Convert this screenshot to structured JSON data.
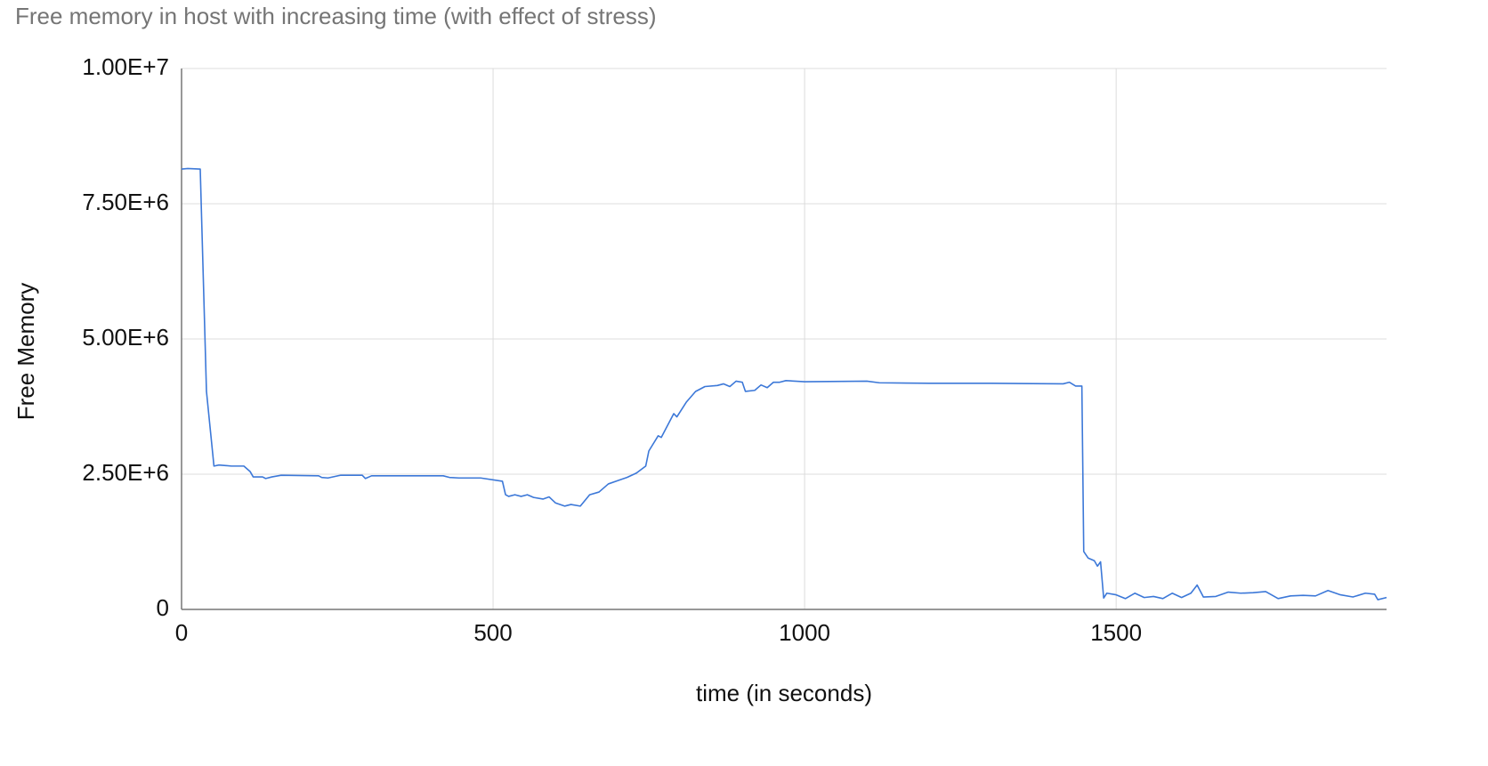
{
  "chart_data": {
    "type": "line",
    "title": "Free memory in host with increasing time (with effect of stress)",
    "x_label": "time (in seconds)",
    "y_label": "Free Memory",
    "xlim": [
      0,
      1934
    ],
    "ylim": [
      0,
      10000000
    ],
    "xticks": [
      0,
      500,
      1000,
      1500
    ],
    "yticks": [
      0,
      {
        "value": 2500000,
        "label": "2.50E+6"
      },
      {
        "value": 5000000,
        "label": "5.00E+6"
      },
      {
        "value": 7500000,
        "label": "7.50E+6"
      },
      {
        "value": 10000000,
        "label": "1.00E+7"
      }
    ],
    "grid": true,
    "series": [
      {
        "name": "Free Memory",
        "color": "#3c78d8",
        "x": [
          0,
          10,
          30,
          40,
          52,
          60,
          80,
          100,
          110,
          115,
          130,
          135,
          145,
          160,
          220,
          225,
          235,
          255,
          290,
          295,
          305,
          420,
          430,
          445,
          480,
          515,
          520,
          525,
          535,
          545,
          555,
          565,
          580,
          590,
          600,
          615,
          625,
          640,
          655,
          670,
          685,
          700,
          715,
          730,
          745,
          750,
          765,
          770,
          790,
          795,
          810,
          825,
          840,
          860,
          870,
          880,
          890,
          900,
          905,
          920,
          930,
          940,
          950,
          960,
          970,
          1000,
          1100,
          1120,
          1200,
          1300,
          1415,
          1425,
          1435,
          1445,
          1448,
          1455,
          1465,
          1470,
          1475,
          1480,
          1485,
          1500,
          1515,
          1530,
          1545,
          1560,
          1575,
          1590,
          1605,
          1620,
          1630,
          1640,
          1660,
          1680,
          1700,
          1720,
          1740,
          1760,
          1780,
          1800,
          1820,
          1840,
          1860,
          1880,
          1900,
          1915,
          1920,
          1934
        ],
        "values": [
          8140000,
          8150000,
          8140000,
          4030000,
          2650000,
          2670000,
          2650000,
          2650000,
          2550000,
          2450000,
          2450000,
          2420000,
          2450000,
          2480000,
          2470000,
          2440000,
          2430000,
          2480000,
          2480000,
          2420000,
          2470000,
          2470000,
          2440000,
          2430000,
          2430000,
          2370000,
          2120000,
          2090000,
          2120000,
          2090000,
          2120000,
          2070000,
          2040000,
          2080000,
          1970000,
          1910000,
          1940000,
          1910000,
          2120000,
          2170000,
          2320000,
          2380000,
          2440000,
          2520000,
          2650000,
          2930000,
          3210000,
          3180000,
          3620000,
          3560000,
          3830000,
          4030000,
          4120000,
          4140000,
          4170000,
          4120000,
          4220000,
          4200000,
          4030000,
          4050000,
          4150000,
          4100000,
          4200000,
          4200000,
          4230000,
          4210000,
          4220000,
          4190000,
          4180000,
          4180000,
          4170000,
          4200000,
          4130000,
          4130000,
          1070000,
          950000,
          900000,
          800000,
          880000,
          210000,
          300000,
          270000,
          200000,
          300000,
          220000,
          240000,
          200000,
          300000,
          220000,
          300000,
          450000,
          230000,
          240000,
          320000,
          300000,
          310000,
          330000,
          200000,
          250000,
          260000,
          250000,
          350000,
          270000,
          230000,
          300000,
          280000,
          180000,
          220000
        ]
      }
    ]
  }
}
